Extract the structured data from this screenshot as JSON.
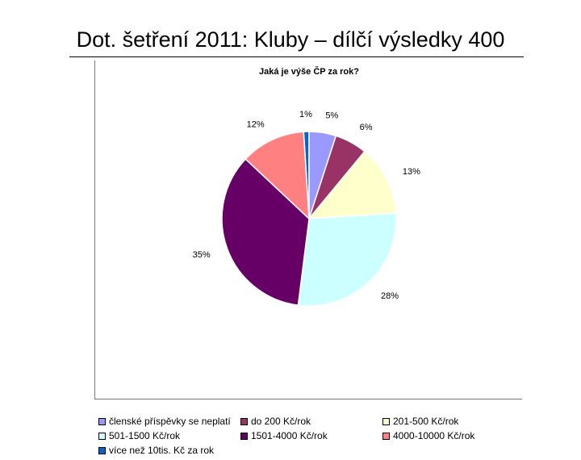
{
  "slide": {
    "title": "Dot. šetření 2011: Kluby – dílčí výsledky 400"
  },
  "chart_data": {
    "type": "pie",
    "title": "Jaká je výše ČP za rok?",
    "legend_position": "bottom",
    "slices": [
      {
        "name": "členské příspěvky se neplatí",
        "value": 5,
        "label": "5%",
        "color": "#9999ff"
      },
      {
        "name": "do 200 Kč/rok",
        "value": 6,
        "label": "6%",
        "color": "#993366"
      },
      {
        "name": "201-500 Kč/rok",
        "value": 13,
        "label": "13%",
        "color": "#ffffcc"
      },
      {
        "name": "501-1500 Kč/rok",
        "value": 28,
        "label": "28%",
        "color": "#ccffff"
      },
      {
        "name": "1501-4000 Kč/rok",
        "value": 35,
        "label": "35%",
        "color": "#660066"
      },
      {
        "name": "4000-10000 Kč/rok",
        "value": 12,
        "label": "12%",
        "color": "#ff8080"
      },
      {
        "name": "více než 10tis. Kč za rok",
        "value": 1,
        "label": "1%",
        "color": "#0066cc"
      }
    ]
  }
}
